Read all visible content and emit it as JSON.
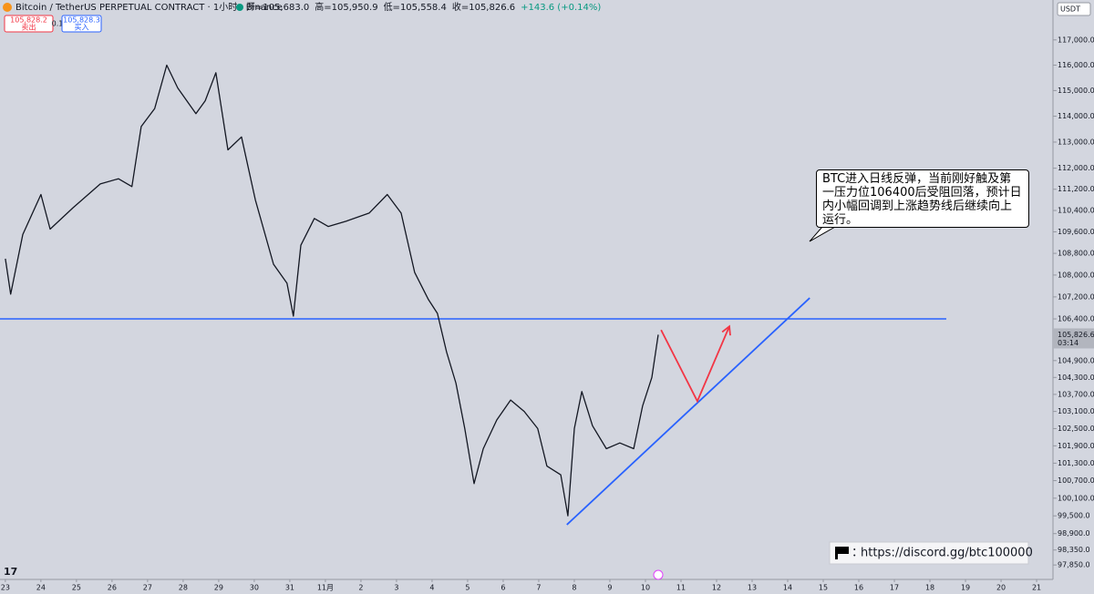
{
  "header": {
    "symbol": "Bitcoin / TetherUS PERPETUAL CONTRACT · 1小时 · Binance",
    "ohlc": [
      "开=105,683.0",
      "高=105,950.9",
      "低=105,558.4",
      "收=105,826.6",
      "+143.6 (+0.14%)"
    ],
    "sell_price": "105,828.2",
    "sell_label": "卖出",
    "quantity": "0.1",
    "buy_price": "105,828.3",
    "buy_label": "买入"
  },
  "chart_data": {
    "type": "line",
    "color": "#131722",
    "log_scale": true,
    "x": [
      0,
      0.15,
      0.49,
      1.0,
      1.26,
      1.9,
      2.67,
      3.18,
      3.56,
      3.82,
      4.2,
      4.54,
      4.85,
      5.36,
      5.62,
      5.92,
      6.26,
      6.64,
      7.03,
      7.54,
      7.92,
      8.1,
      8.31,
      8.69,
      9.08,
      9.59,
      10.23,
      10.74,
      11.13,
      11.51,
      11.9,
      12.15,
      12.41,
      12.67,
      12.92,
      13.18,
      13.44,
      13.82,
      14.21,
      14.59,
      14.97,
      15.23,
      15.62,
      15.82,
      16.0,
      16.21,
      16.51,
      16.9,
      17.28,
      17.67,
      17.92,
      18.18,
      18.36
    ],
    "values": [
      108600,
      107300,
      109500,
      111000,
      109700,
      110500,
      111400,
      111600,
      111300,
      113600,
      114300,
      116000,
      115100,
      114100,
      114600,
      115700,
      112700,
      113200,
      110800,
      108400,
      107700,
      106500,
      109100,
      110100,
      109800,
      110000,
      110300,
      111000,
      110300,
      108100,
      107100,
      106600,
      105200,
      104100,
      102500,
      100600,
      101800,
      102800,
      103500,
      103100,
      102500,
      101200,
      100900,
      99500,
      102500,
      103800,
      102600,
      101800,
      102000,
      101800,
      103300,
      104300,
      105826.6
    ],
    "xlim": [
      -0.15,
      29.46
    ],
    "ylim": [
      97370,
      118600
    ],
    "xticks": [
      {
        "value": 0,
        "label": "23"
      },
      {
        "value": 1,
        "label": "24"
      },
      {
        "value": 2,
        "label": "25"
      },
      {
        "value": 3,
        "label": "26"
      },
      {
        "value": 4,
        "label": "27"
      },
      {
        "value": 5,
        "label": "28"
      },
      {
        "value": 6,
        "label": "29"
      },
      {
        "value": 7,
        "label": "30"
      },
      {
        "value": 8,
        "label": "31"
      },
      {
        "value": 9,
        "label": "11月"
      },
      {
        "value": 10,
        "label": "2"
      },
      {
        "value": 11,
        "label": "3"
      },
      {
        "value": 12,
        "label": "4"
      },
      {
        "value": 13,
        "label": "5"
      },
      {
        "value": 14,
        "label": "6"
      },
      {
        "value": 15,
        "label": "7"
      },
      {
        "value": 16,
        "label": "8"
      },
      {
        "value": 17,
        "label": "9"
      },
      {
        "value": 18,
        "label": "10"
      },
      {
        "value": 19,
        "label": "11"
      },
      {
        "value": 20,
        "label": "12"
      },
      {
        "value": 21,
        "label": "13"
      },
      {
        "value": 22,
        "label": "14"
      },
      {
        "value": 23,
        "label": "15"
      },
      {
        "value": 24,
        "label": "16"
      },
      {
        "value": 25,
        "label": "17"
      },
      {
        "value": 26,
        "label": "18"
      },
      {
        "value": 27,
        "label": "19"
      },
      {
        "value": 28,
        "label": "20"
      },
      {
        "value": 29,
        "label": "21"
      }
    ],
    "yticks": [
      {
        "value": 117000,
        "label": "117,000.0"
      },
      {
        "value": 116000,
        "label": "116,000.0"
      },
      {
        "value": 115000,
        "label": "115,000.0"
      },
      {
        "value": 114000,
        "label": "114,000.0"
      },
      {
        "value": 113000,
        "label": "113,000.0"
      },
      {
        "value": 112000,
        "label": "112,000.0"
      },
      {
        "value": 111200,
        "label": "111,200.0"
      },
      {
        "value": 110400,
        "label": "110,400.0"
      },
      {
        "value": 109600,
        "label": "109,600.0"
      },
      {
        "value": 108800,
        "label": "108,800.0"
      },
      {
        "value": 108000,
        "label": "108,000.0"
      },
      {
        "value": 107200,
        "label": "107,200.0"
      },
      {
        "value": 106400,
        "label": "106,400.0"
      },
      {
        "value": 104900,
        "label": "104,900.0"
      },
      {
        "value": 104300,
        "label": "104,300.0"
      },
      {
        "value": 103700,
        "label": "103,700.0"
      },
      {
        "value": 103100,
        "label": "103,100.0"
      },
      {
        "value": 102500,
        "label": "102,500.0"
      },
      {
        "value": 101900,
        "label": "101,900.0"
      },
      {
        "value": 101300,
        "label": "101,300.0"
      },
      {
        "value": 100700,
        "label": "100,700.0"
      },
      {
        "value": 100100,
        "label": "100,100.0"
      },
      {
        "value": 99500,
        "label": "99,500.0"
      },
      {
        "value": 98900,
        "label": "98,900.0"
      },
      {
        "value": 98350,
        "label": "98,350.0"
      },
      {
        "value": 97850,
        "label": "97,850.0"
      }
    ],
    "last_price": {
      "value": 105826.6,
      "label": "105,826.6"
    },
    "countdown": "03:14",
    "currency": "USDT",
    "horizontal_line": {
      "value": 106400,
      "x": [
        -0.15,
        26.46
      ],
      "color": "#2962ff"
    },
    "trend_line": {
      "x": [
        15.79,
        22.62
      ],
      "values": [
        99200,
        107160
      ],
      "color": "#2962ff"
    },
    "forecast_arrow": {
      "x": [
        18.44,
        19.46,
        20.36
      ],
      "values": [
        106000,
        103460,
        106130
      ],
      "color": "#f23645"
    },
    "annotation": "BTC进入日线反弹，当前刚好触及第一压力位106400后受阻回落，预计日内小幅回调到上涨趋势线后继续向上运行。"
  },
  "footer": {
    "link": "https://discord.gg/btc100000"
  }
}
